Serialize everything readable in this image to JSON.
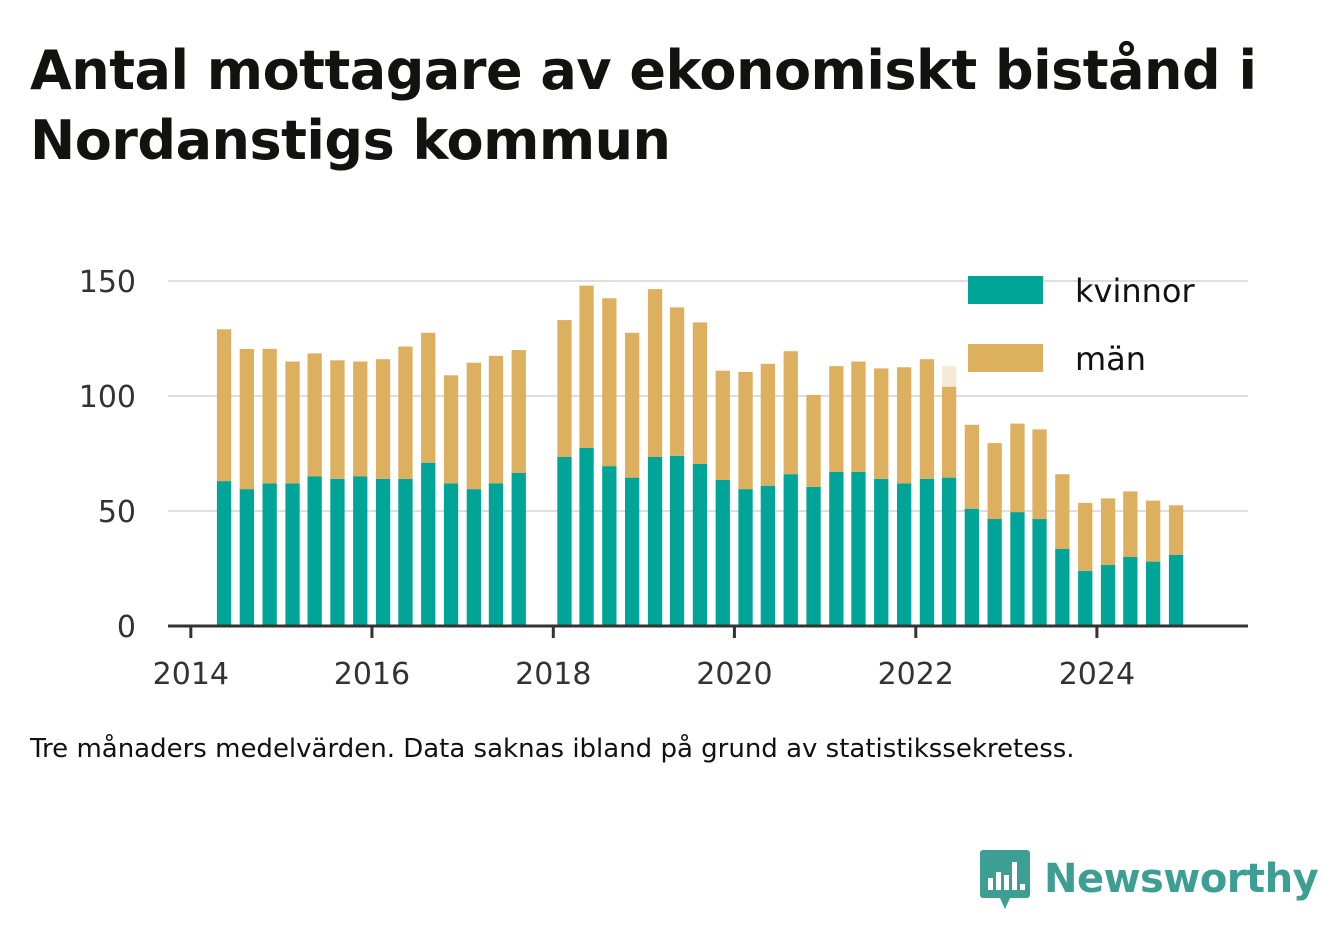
{
  "title": "Antal mottagare av ekonomiskt bistånd i Nordanstigs kommun",
  "caption": "Tre månaders medelvärden. Data saknas ibland på grund av statistikssekretess.",
  "brand": {
    "name": "Newsworthy",
    "icon": "bar-chart-speech-bubble-icon",
    "color": "#3d9e93"
  },
  "chart_data": {
    "type": "bar",
    "stacked": true,
    "x_ticks": [
      "2014",
      "2016",
      "2018",
      "2020",
      "2022",
      "2024"
    ],
    "y_ticks": [
      "0",
      "50",
      "100",
      "150"
    ],
    "ylim": [
      0,
      150
    ],
    "xlim": [
      "2013-10-01",
      "2025-09-01"
    ],
    "grid": true,
    "legend_position": "top-right",
    "series_colors": {
      "kvinnor": "#00a597",
      "män": "#dcb05f"
    },
    "series": [
      {
        "name": "kvinnor",
        "color": "#00a597"
      },
      {
        "name": "män",
        "color": "#dcb05f"
      }
    ],
    "x": [
      "2014-05",
      "2014-08",
      "2014-11",
      "2015-02",
      "2015-05",
      "2015-08",
      "2015-11",
      "2016-02",
      "2016-05",
      "2016-08",
      "2016-11",
      "2017-02",
      "2017-05",
      "2017-08",
      "2018-02",
      "2018-05",
      "2018-08",
      "2018-11",
      "2019-02",
      "2019-05",
      "2019-08",
      "2019-11",
      "2020-02",
      "2020-05",
      "2020-08",
      "2020-11",
      "2021-02",
      "2021-05",
      "2021-08",
      "2021-11",
      "2022-02",
      "2022-05",
      "2022-08",
      "2022-11",
      "2023-02",
      "2023-05",
      "2023-08",
      "2023-11",
      "2024-02",
      "2024-05",
      "2024-08",
      "2024-11"
    ],
    "values": {
      "kvinnor": [
        63,
        59.5,
        62,
        62,
        65,
        64,
        65,
        64,
        64,
        71,
        62,
        59.5,
        62,
        66.5,
        73.5,
        77.5,
        69.5,
        64.5,
        73.5,
        74,
        70.5,
        63.5,
        59.5,
        61,
        66,
        60.5,
        67,
        67,
        64,
        62,
        64,
        64.5,
        51,
        46.5,
        49.5,
        46.5,
        33.5,
        24,
        26.5,
        30,
        28,
        31
      ],
      "män": [
        66,
        61,
        58.5,
        53,
        53.5,
        51.5,
        50,
        52,
        57.5,
        56.5,
        47,
        55,
        55.5,
        53.5,
        59.5,
        70.5,
        73,
        63,
        73,
        64.5,
        61.5,
        47.5,
        51,
        53,
        53.5,
        40,
        46,
        48,
        48,
        50.5,
        52,
        40,
        36.5,
        33,
        38.5,
        39,
        32.5,
        29.5,
        29,
        28.5,
        26.5,
        21.5
      ]
    },
    "masked_segment": {
      "x": "2022-05",
      "series": "män",
      "from": 104,
      "to": 113,
      "color": "#f6ead7"
    }
  }
}
